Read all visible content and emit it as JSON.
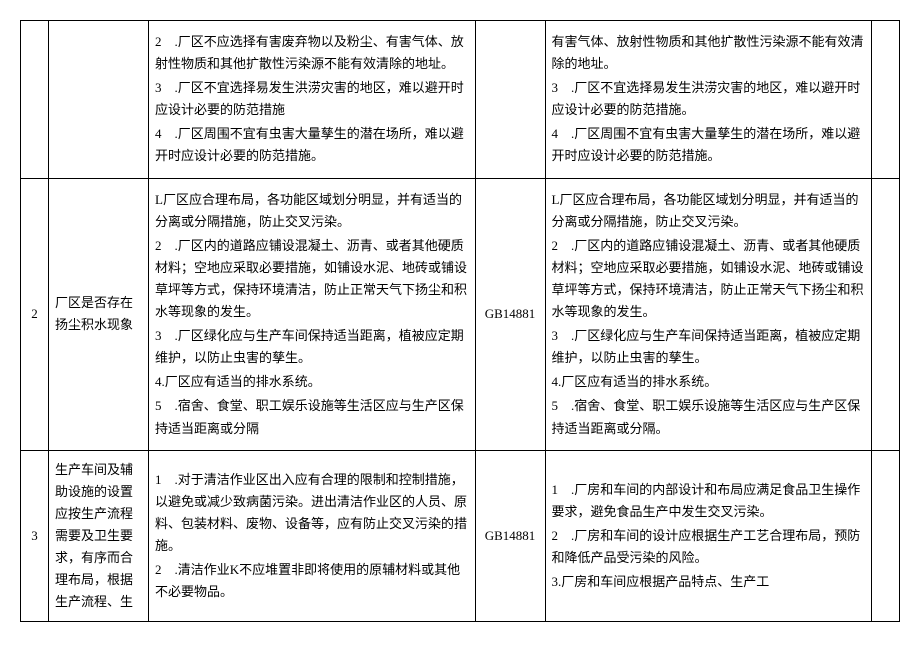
{
  "rows": [
    {
      "num": "",
      "topic": "",
      "col3": [
        "2　.厂区不应选择有害废弃物以及粉尘、有害气体、放射性物质和其他扩散性污染源不能有效清除的地址。",
        "3　.厂区不宜选择易发生洪涝灾害的地区，难以避开时应设计必要的防范措施",
        "4　.厂区周围不宜有虫害大量孳生的潜在场所，难以避开时应设计必要的防范措施。"
      ],
      "std": "",
      "col5": [
        "有害气体、放射性物质和其他扩散性污染源不能有效清除的地址。",
        "3　.厂区不宜选择易发生洪涝灾害的地区，难以避开时应设计必要的防范措施。",
        "4　.厂区周围不宜有虫害大量孳生的潜在场所，难以避开时应设计必要的防范措施。"
      ]
    },
    {
      "num": "2",
      "topic": "厂区是否存在扬尘积水现象",
      "col3": [
        "L厂区应合理布局，各功能区域划分明显，并有适当的分离或分隔措施，防止交叉污染。",
        "2　.厂区内的道路应铺设混凝土、沥青、或者其他硬质材料；空地应采取必要措施，如铺设水泥、地砖或铺设草坪等方式，保持环境清洁，防止正常天气下扬尘和积水等现象的发生。",
        "3　.厂区绿化应与生产车间保持适当距离，植被应定期维护，以防止虫害的孳生。",
        "4.厂区应有适当的排水系统。",
        "5　.宿舍、食堂、职工娱乐设施等生活区应与生产区保持适当距离或分隔"
      ],
      "std": "GB14881",
      "col5": [
        "L厂区应合理布局，各功能区域划分明显，并有适当的分离或分隔措施，防止交叉污染。",
        "2　.厂区内的道路应铺设混凝土、沥青、或者其他硬质材料；空地应采取必要措施，如铺设水泥、地砖或铺设草坪等方式，保持环境清洁，防止正常天气下扬尘和积水等现象的发生。",
        "3　.厂区绿化应与生产车间保持适当距离，植被应定期维护，以防止虫害的孳生。",
        "4.厂区应有适当的排水系统。",
        "5　.宿舍、食堂、职工娱乐设施等生活区应与生产区保持适当距离或分隔。"
      ]
    },
    {
      "num": "3",
      "topic": "生产车间及辅助设施的设置应按生产流程需要及卫生要求，有序而合理布局，根据生产流程、生",
      "col3": [
        "1　.对于清洁作业区出入应有合理的限制和控制措施，以避免或减少致病菌污染。进出清洁作业区的人员、原料、包装材料、废物、设备等，应有防止交叉污染的措施。",
        "2　.清洁作业K不应堆置非即将使用的原辅材料或其他不必要物品。"
      ],
      "std": "GB14881",
      "col5": [
        "1　.厂房和车间的内部设计和布局应满足食品卫生操作要求，避免食品生产中发生交叉污染。",
        "2　.厂房和车间的设计应根据生产工艺合理布局，预防和降低产品受污染的风险。",
        "3.厂房和车间应根据产品特点、生产工"
      ]
    }
  ]
}
